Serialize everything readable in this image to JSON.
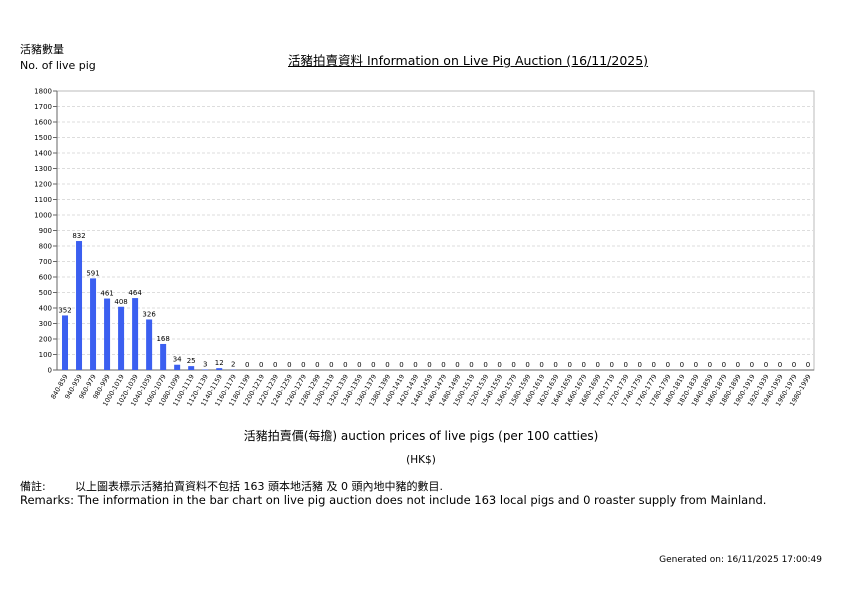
{
  "header": {
    "y_label_zh": "活豬數量",
    "y_label_en": "No. of live pig",
    "title": "活豬拍賣資料 Information on Live Pig Auction (16/11/2025)"
  },
  "footer": {
    "xlabel": "活豬拍賣價(每擔) auction prices of live pigs (per 100 catties)",
    "unit": "(HK$)",
    "remarks_zh_prefix": "備註:",
    "remarks_zh": "以上圖表標示活豬拍賣資料不包括 163 頭本地活豬 及 0 頭內地中豬的數目.",
    "remarks_en": "Remarks: The information in the bar chart on live pig auction does not include 163 local pigs and 0 roaster supply from Mainland.",
    "generated": "Generated on: 16/11/2025 17:00:49"
  },
  "chart_data": {
    "type": "bar",
    "title": "活豬拍賣資料 Information on Live Pig Auction (16/11/2025)",
    "xlabel": "活豬拍賣價(每擔) auction prices of live pigs (per 100 catties)",
    "ylabel": "No. of live pig",
    "ylim": [
      0,
      1800
    ],
    "yticks": [
      0,
      100,
      200,
      300,
      400,
      500,
      600,
      700,
      800,
      900,
      1000,
      1100,
      1200,
      1300,
      1400,
      1500,
      1600,
      1700,
      1800
    ],
    "grid": true,
    "bar_color": "#3b5ff0",
    "categories": [
      "840-859",
      "940-959",
      "960-979",
      "980-999",
      "1000-1019",
      "1020-1039",
      "1040-1059",
      "1060-1079",
      "1080-1099",
      "1100-1119",
      "1120-1139",
      "1140-1159",
      "1160-1179",
      "1180-1199",
      "1200-1219",
      "1220-1239",
      "1240-1259",
      "1260-1279",
      "1280-1299",
      "1300-1319",
      "1320-1339",
      "1340-1359",
      "1360-1379",
      "1380-1399",
      "1400-1419",
      "1420-1439",
      "1440-1459",
      "1460-1479",
      "1480-1499",
      "1500-1519",
      "1520-1539",
      "1540-1559",
      "1560-1579",
      "1580-1599",
      "1600-1619",
      "1620-1639",
      "1640-1659",
      "1660-1679",
      "1680-1699",
      "1700-1719",
      "1720-1739",
      "1740-1759",
      "1760-1779",
      "1780-1799",
      "1800-1819",
      "1820-1839",
      "1840-1859",
      "1860-1879",
      "1880-1899",
      "1900-1919",
      "1920-1939",
      "1940-1959",
      "1960-1979",
      "1980-1999"
    ],
    "values": [
      352,
      832,
      591,
      461,
      408,
      464,
      326,
      168,
      34,
      25,
      3,
      12,
      2,
      0,
      0,
      0,
      0,
      0,
      0,
      0,
      0,
      0,
      0,
      0,
      0,
      0,
      0,
      0,
      0,
      0,
      0,
      0,
      0,
      0,
      0,
      0,
      0,
      0,
      0,
      0,
      0,
      0,
      0,
      0,
      0,
      0,
      0,
      0,
      0,
      0,
      0,
      0,
      0,
      0
    ]
  }
}
